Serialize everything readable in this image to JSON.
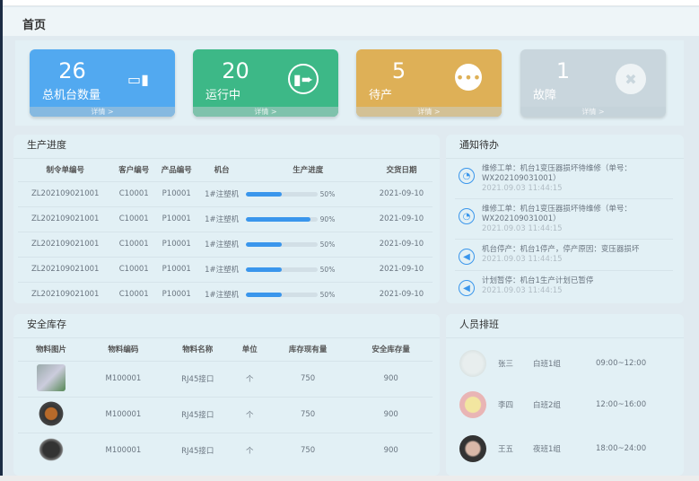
{
  "page_title": "首页",
  "cards": [
    {
      "value": "26",
      "label": "总机台数量",
      "footer": "详情 >",
      "icon": "machine-icon",
      "color": "#52a9f0",
      "foot_color": "#86b9e0"
    },
    {
      "value": "20",
      "label": "运行中",
      "footer": "详情 >",
      "icon": "running-icon",
      "color": "#3db887",
      "foot_color": "#7fc2ac"
    },
    {
      "value": "5",
      "label": "待产",
      "footer": "详情 >",
      "icon": "more-dots-icon",
      "color": "#deb057",
      "foot_color": "#d3c195"
    },
    {
      "value": "1",
      "label": "故障",
      "footer": "详情 >",
      "icon": "tools-icon",
      "color": "#c9d6dd",
      "foot_color": "#c5d3da"
    }
  ],
  "production": {
    "title": "生产进度",
    "headers": [
      "制令单编号",
      "客户编号",
      "产品编号",
      "机台",
      "生产进度",
      "交货日期"
    ],
    "rows": [
      {
        "order": "ZL202109021001",
        "customer": "C10001",
        "product": "P10001",
        "machine": "1#注塑机",
        "progress": 50,
        "progress_label": "50%",
        "date": "2021-09-10"
      },
      {
        "order": "ZL202109021001",
        "customer": "C10001",
        "product": "P10001",
        "machine": "1#注塑机",
        "progress": 90,
        "progress_label": "90%",
        "date": "2021-09-10"
      },
      {
        "order": "ZL202109021001",
        "customer": "C10001",
        "product": "P10001",
        "machine": "1#注塑机",
        "progress": 50,
        "progress_label": "50%",
        "date": "2021-09-10"
      },
      {
        "order": "ZL202109021001",
        "customer": "C10001",
        "product": "P10001",
        "machine": "1#注塑机",
        "progress": 50,
        "progress_label": "50%",
        "date": "2021-09-10"
      },
      {
        "order": "ZL202109021001",
        "customer": "C10001",
        "product": "P10001",
        "machine": "1#注塑机",
        "progress": 50,
        "progress_label": "50%",
        "date": "2021-09-10"
      }
    ]
  },
  "notices": {
    "title": "通知待办",
    "items": [
      {
        "icon": "clock-icon",
        "text": "维修工单：机台1变压器损坏待维修（单号：WX202109031001）",
        "time": "2021.09.03 11:44:15"
      },
      {
        "icon": "clock-icon",
        "text": "维修工单：机台1变压器损坏待维修（单号：WX202109031001）",
        "time": "2021.09.03 11:44:15"
      },
      {
        "icon": "speaker-icon",
        "text": "机台停产：机台1停产，停产原因：变压器损坏",
        "time": "2021.09.03 11:44:15"
      },
      {
        "icon": "speaker-icon",
        "text": "计划暂停：机台1生产计划已暂停",
        "time": "2021.09.03 11:44:15"
      }
    ]
  },
  "stock": {
    "title": "安全库存",
    "headers": [
      "物料图片",
      "物料编码",
      "物料名称",
      "单位",
      "库存现有量",
      "安全库存量"
    ],
    "rows": [
      {
        "code": "M100001",
        "name": "RJ45接口",
        "unit": "个",
        "current": "750",
        "safe": "900"
      },
      {
        "code": "M100001",
        "name": "RJ45接口",
        "unit": "个",
        "current": "750",
        "safe": "900"
      },
      {
        "code": "M100001",
        "name": "RJ45接口",
        "unit": "个",
        "current": "750",
        "safe": "900"
      }
    ]
  },
  "staff": {
    "title": "人员排班",
    "items": [
      {
        "name": "张三",
        "team": "白班1组",
        "time": "09:00~12:00"
      },
      {
        "name": "李四",
        "team": "白班2组",
        "time": "12:00~16:00"
      },
      {
        "name": "王五",
        "team": "夜班1组",
        "time": "18:00~24:00"
      }
    ]
  }
}
